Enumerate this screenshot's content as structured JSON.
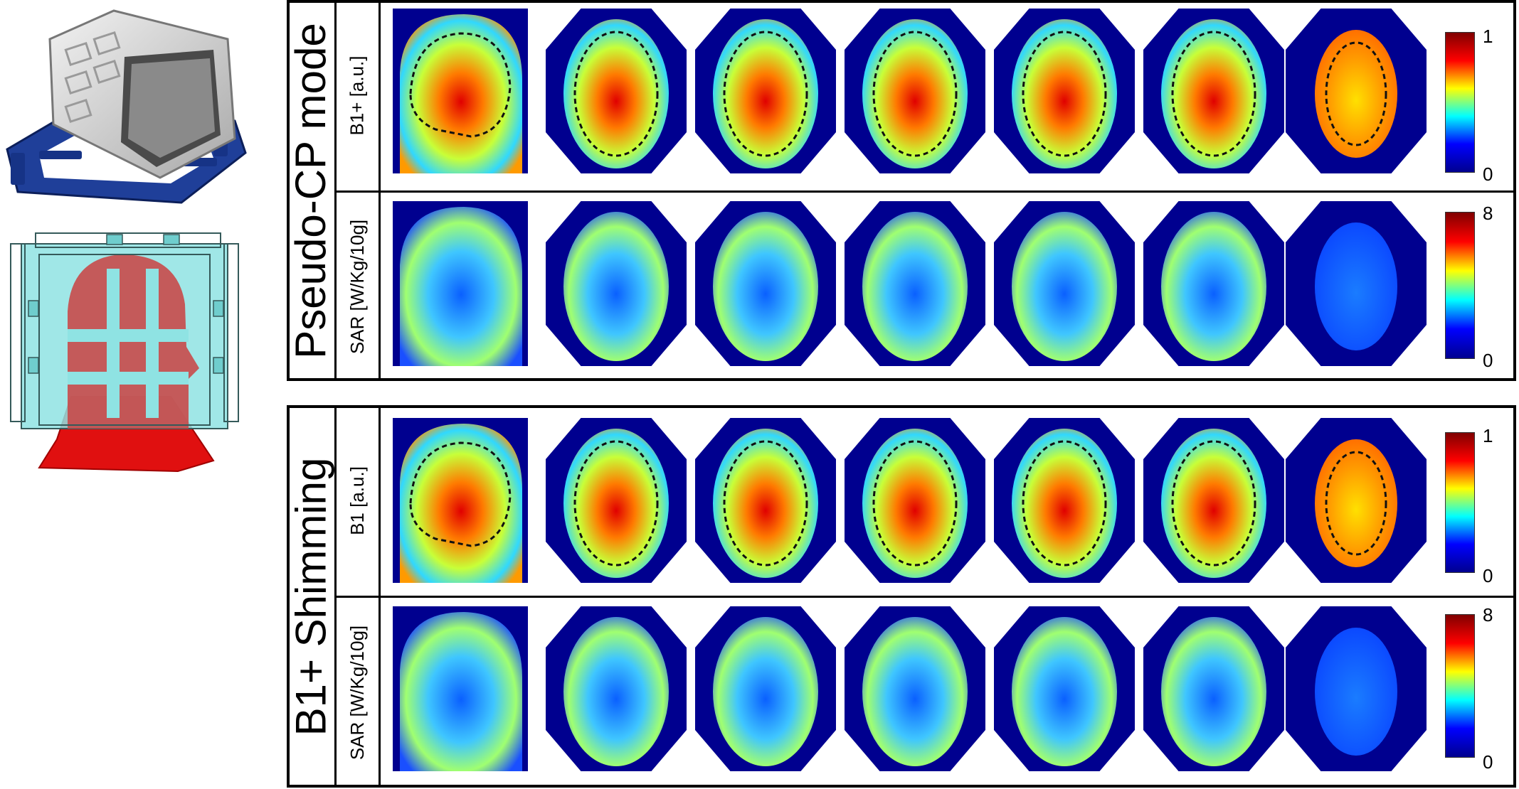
{
  "modes": [
    {
      "label": "Pseudo-CP mode",
      "rows": [
        {
          "label": "B1+ [a.u.]",
          "type": "b1",
          "cbar_max": "1",
          "cbar_min": "0"
        },
        {
          "label": "SAR [W/Kg/10g]",
          "type": "sar",
          "cbar_max": "8",
          "cbar_min": "0"
        }
      ]
    },
    {
      "label": "B1+ Shimming",
      "rows": [
        {
          "label": "B1 [a.u.]",
          "type": "b1",
          "cbar_max": "1",
          "cbar_min": "0"
        },
        {
          "label": "SAR [W/Kg/10g]",
          "type": "sar",
          "cbar_max": "8",
          "cbar_min": "0"
        }
      ]
    }
  ],
  "colors": {
    "jet": [
      "#00008f",
      "#0000ff",
      "#00ffff",
      "#ffff00",
      "#ff0000",
      "#800000"
    ],
    "map_background": "#00008f",
    "coil_blue": "#1f3f99",
    "coil_white": "#e2e2e2",
    "coil_cyan": "#8fe3e3",
    "head_red": "#e01010"
  }
}
